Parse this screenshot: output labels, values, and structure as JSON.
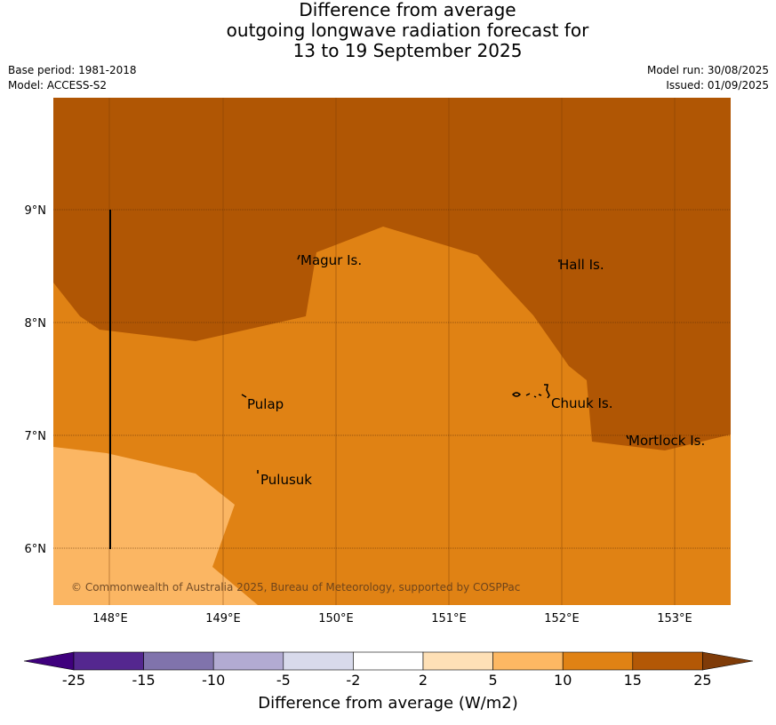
{
  "title_lines": [
    "Difference from average",
    "outgoing longwave radiation forecast for",
    "13 to 19 September 2025"
  ],
  "base_period": "Base period: 1981-2018",
  "model": "Model: ACCESS-S2",
  "model_run": "Model run: 30/08/2025",
  "issued": "Issued: 01/09/2025",
  "copyright": "© Commonwealth of Australia 2025, Bureau of Meteorology, supported by COSPPac",
  "map": {
    "lat_labels": [
      "9°N",
      "8°N",
      "7°N",
      "6°N"
    ],
    "lon_labels": [
      "148°E",
      "149°E",
      "150°E",
      "151°E",
      "152°E",
      "153°E"
    ],
    "places": [
      "Magur Is.",
      "Hall Is.",
      "Pulap",
      "Chuuk Is.",
      "Mortlock Is.",
      "Pulusuk"
    ]
  },
  "colorbar": {
    "title": "Difference from average (W/m2)",
    "ticks": [
      "-25",
      "-15",
      "-10",
      "-5",
      "-2",
      "2",
      "5",
      "10",
      "15",
      "25"
    ],
    "colors": [
      "#3f007d",
      "#54278f",
      "#8073ac",
      "#b2abd2",
      "#d8daeb",
      "#ffffff",
      "#fee0b6",
      "#fdb863",
      "#e08214",
      "#b35806",
      "#7f3b08"
    ]
  }
}
